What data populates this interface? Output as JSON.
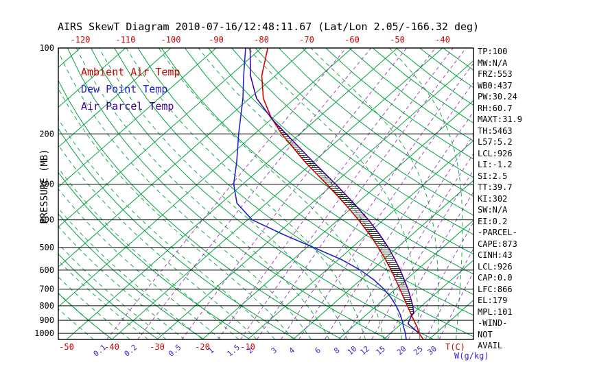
{
  "title": "AIRS SkewT Diagram 2010-07-16/12:48:11.67 (Lat/Lon 2.05/-166.32 deg)",
  "colors": {
    "ambient": "#cc0000",
    "dewpoint": "#2222cc",
    "parcel": "#44009a",
    "grid_green": "#00a23e",
    "mixing_line": "#9933bb",
    "mix_label": "#3a22cc",
    "axis": "#000000"
  },
  "legend": [
    {
      "label": "Ambient Air Temp",
      "color_key": "ambient"
    },
    {
      "label": "Dew Point Temp",
      "color_key": "dewpoint"
    },
    {
      "label": "Air Parcel Temp",
      "color_key": "parcel"
    }
  ],
  "axes": {
    "pressure_label": "PRESSURE (MB)",
    "pressure_ticks": [
      100,
      200,
      300,
      400,
      500,
      600,
      700,
      800,
      900,
      1000
    ],
    "top_temp_ticks": [
      -120,
      -110,
      -100,
      -90,
      -80,
      -70,
      -60,
      -50,
      -40
    ],
    "bottom_temp_ticks": [
      -50,
      -40,
      -30,
      -20,
      -10
    ],
    "bottom_temp_unit": "T(C)",
    "mixing_ratio_ticks": [
      0.1,
      0.2,
      0.5,
      1,
      1.5,
      2,
      3,
      4,
      6,
      8,
      10,
      12,
      15,
      20,
      25,
      30
    ],
    "mixing_ratio_unit": "W(g/kg)"
  },
  "panel": {
    "lines": [
      "TP:100",
      "MW:N/A",
      "FRZ:553",
      "WB0:437",
      "PW:30.24",
      "RH:60.7",
      "MAXT:31.9",
      "TH:5463",
      "L57:5.2",
      "LCL:926",
      "LI:-1.2",
      "SI:2.5",
      "TT:39.7",
      "KI:302",
      "SW:N/A",
      "EI:0.2",
      "-PARCEL-",
      "CAPE:873",
      "CINH:43",
      "LCL:926",
      "CAP:0.0",
      "LFC:866",
      "EL:179",
      "MPL:101",
      "-WIND-",
      "NOT",
      "AVAIL"
    ]
  },
  "chart_data": {
    "type": "line",
    "title": "AIRS SkewT Diagram 2010-07-16/12:48:11.67 (Lat/Lon 2.05/-166.32 deg)",
    "xlabel": "T(C)",
    "ylabel": "PRESSURE (MB)",
    "pressure_range_mb": [
      100,
      1050
    ],
    "grid": {
      "isotherm_c_range": [
        -120,
        40,
        10
      ],
      "dry_adiabat_theta_k_range": [
        230,
        450,
        10
      ],
      "moist_adiabat_start_c_range": [
        -44,
        36,
        4
      ]
    },
    "series": [
      {
        "key": "ambient",
        "name": "Ambient Air Temp",
        "color_key": "ambient",
        "points_p_t": [
          [
            1050,
            28.8
          ],
          [
            1000,
            26.3
          ],
          [
            950,
            24.3
          ],
          [
            900,
            21.9
          ],
          [
            850,
            19.4
          ],
          [
            800,
            16.8
          ],
          [
            750,
            14.0
          ],
          [
            700,
            11.0
          ],
          [
            650,
            7.8
          ],
          [
            600,
            4.3
          ],
          [
            550,
            0.3
          ],
          [
            500,
            -4.2
          ],
          [
            450,
            -9.4
          ],
          [
            400,
            -15.5
          ],
          [
            350,
            -22.8
          ],
          [
            300,
            -31.5
          ],
          [
            250,
            -42.0
          ],
          [
            200,
            -54.0
          ],
          [
            175,
            -60.5
          ],
          [
            150,
            -67.0
          ],
          [
            125,
            -73.0
          ],
          [
            100,
            -78.6
          ]
        ]
      },
      {
        "key": "dewpoint",
        "name": "Dew Point Temp",
        "color_key": "dewpoint",
        "points_p_t": [
          [
            1050,
            25.0
          ],
          [
            1000,
            23.3
          ],
          [
            950,
            21.3
          ],
          [
            900,
            19.3
          ],
          [
            850,
            17.0
          ],
          [
            800,
            14.3
          ],
          [
            750,
            11.2
          ],
          [
            700,
            7.5
          ],
          [
            650,
            3.0
          ],
          [
            600,
            -2.5
          ],
          [
            550,
            -9.5
          ],
          [
            500,
            -18.5
          ],
          [
            450,
            -28.5
          ],
          [
            400,
            -39.0
          ],
          [
            350,
            -46.5
          ],
          [
            300,
            -52.0
          ],
          [
            250,
            -57.0
          ],
          [
            200,
            -63.5
          ],
          [
            150,
            -71.5
          ],
          [
            125,
            -77.0
          ],
          [
            100,
            -83.5
          ]
        ]
      },
      {
        "key": "parcel",
        "name": "Air Parcel Temp",
        "color_key": "parcel",
        "points_p_t": [
          [
            1000,
            26.3
          ],
          [
            950,
            23.1
          ],
          [
            926,
            21.5
          ],
          [
            900,
            20.9
          ],
          [
            866,
            20.2
          ],
          [
            850,
            20.1
          ],
          [
            800,
            18.0
          ],
          [
            750,
            15.5
          ],
          [
            700,
            12.8
          ],
          [
            650,
            9.7
          ],
          [
            600,
            6.3
          ],
          [
            550,
            2.4
          ],
          [
            500,
            -2.0
          ],
          [
            450,
            -7.2
          ],
          [
            400,
            -13.3
          ],
          [
            350,
            -20.7
          ],
          [
            300,
            -29.5
          ],
          [
            250,
            -40.2
          ],
          [
            200,
            -53.0
          ],
          [
            179,
            -59.4
          ],
          [
            150,
            -68.5
          ],
          [
            125,
            -75.5
          ],
          [
            100,
            -82.5
          ]
        ]
      }
    ],
    "cape_hatch_p_range": [
      866,
      180
    ]
  }
}
